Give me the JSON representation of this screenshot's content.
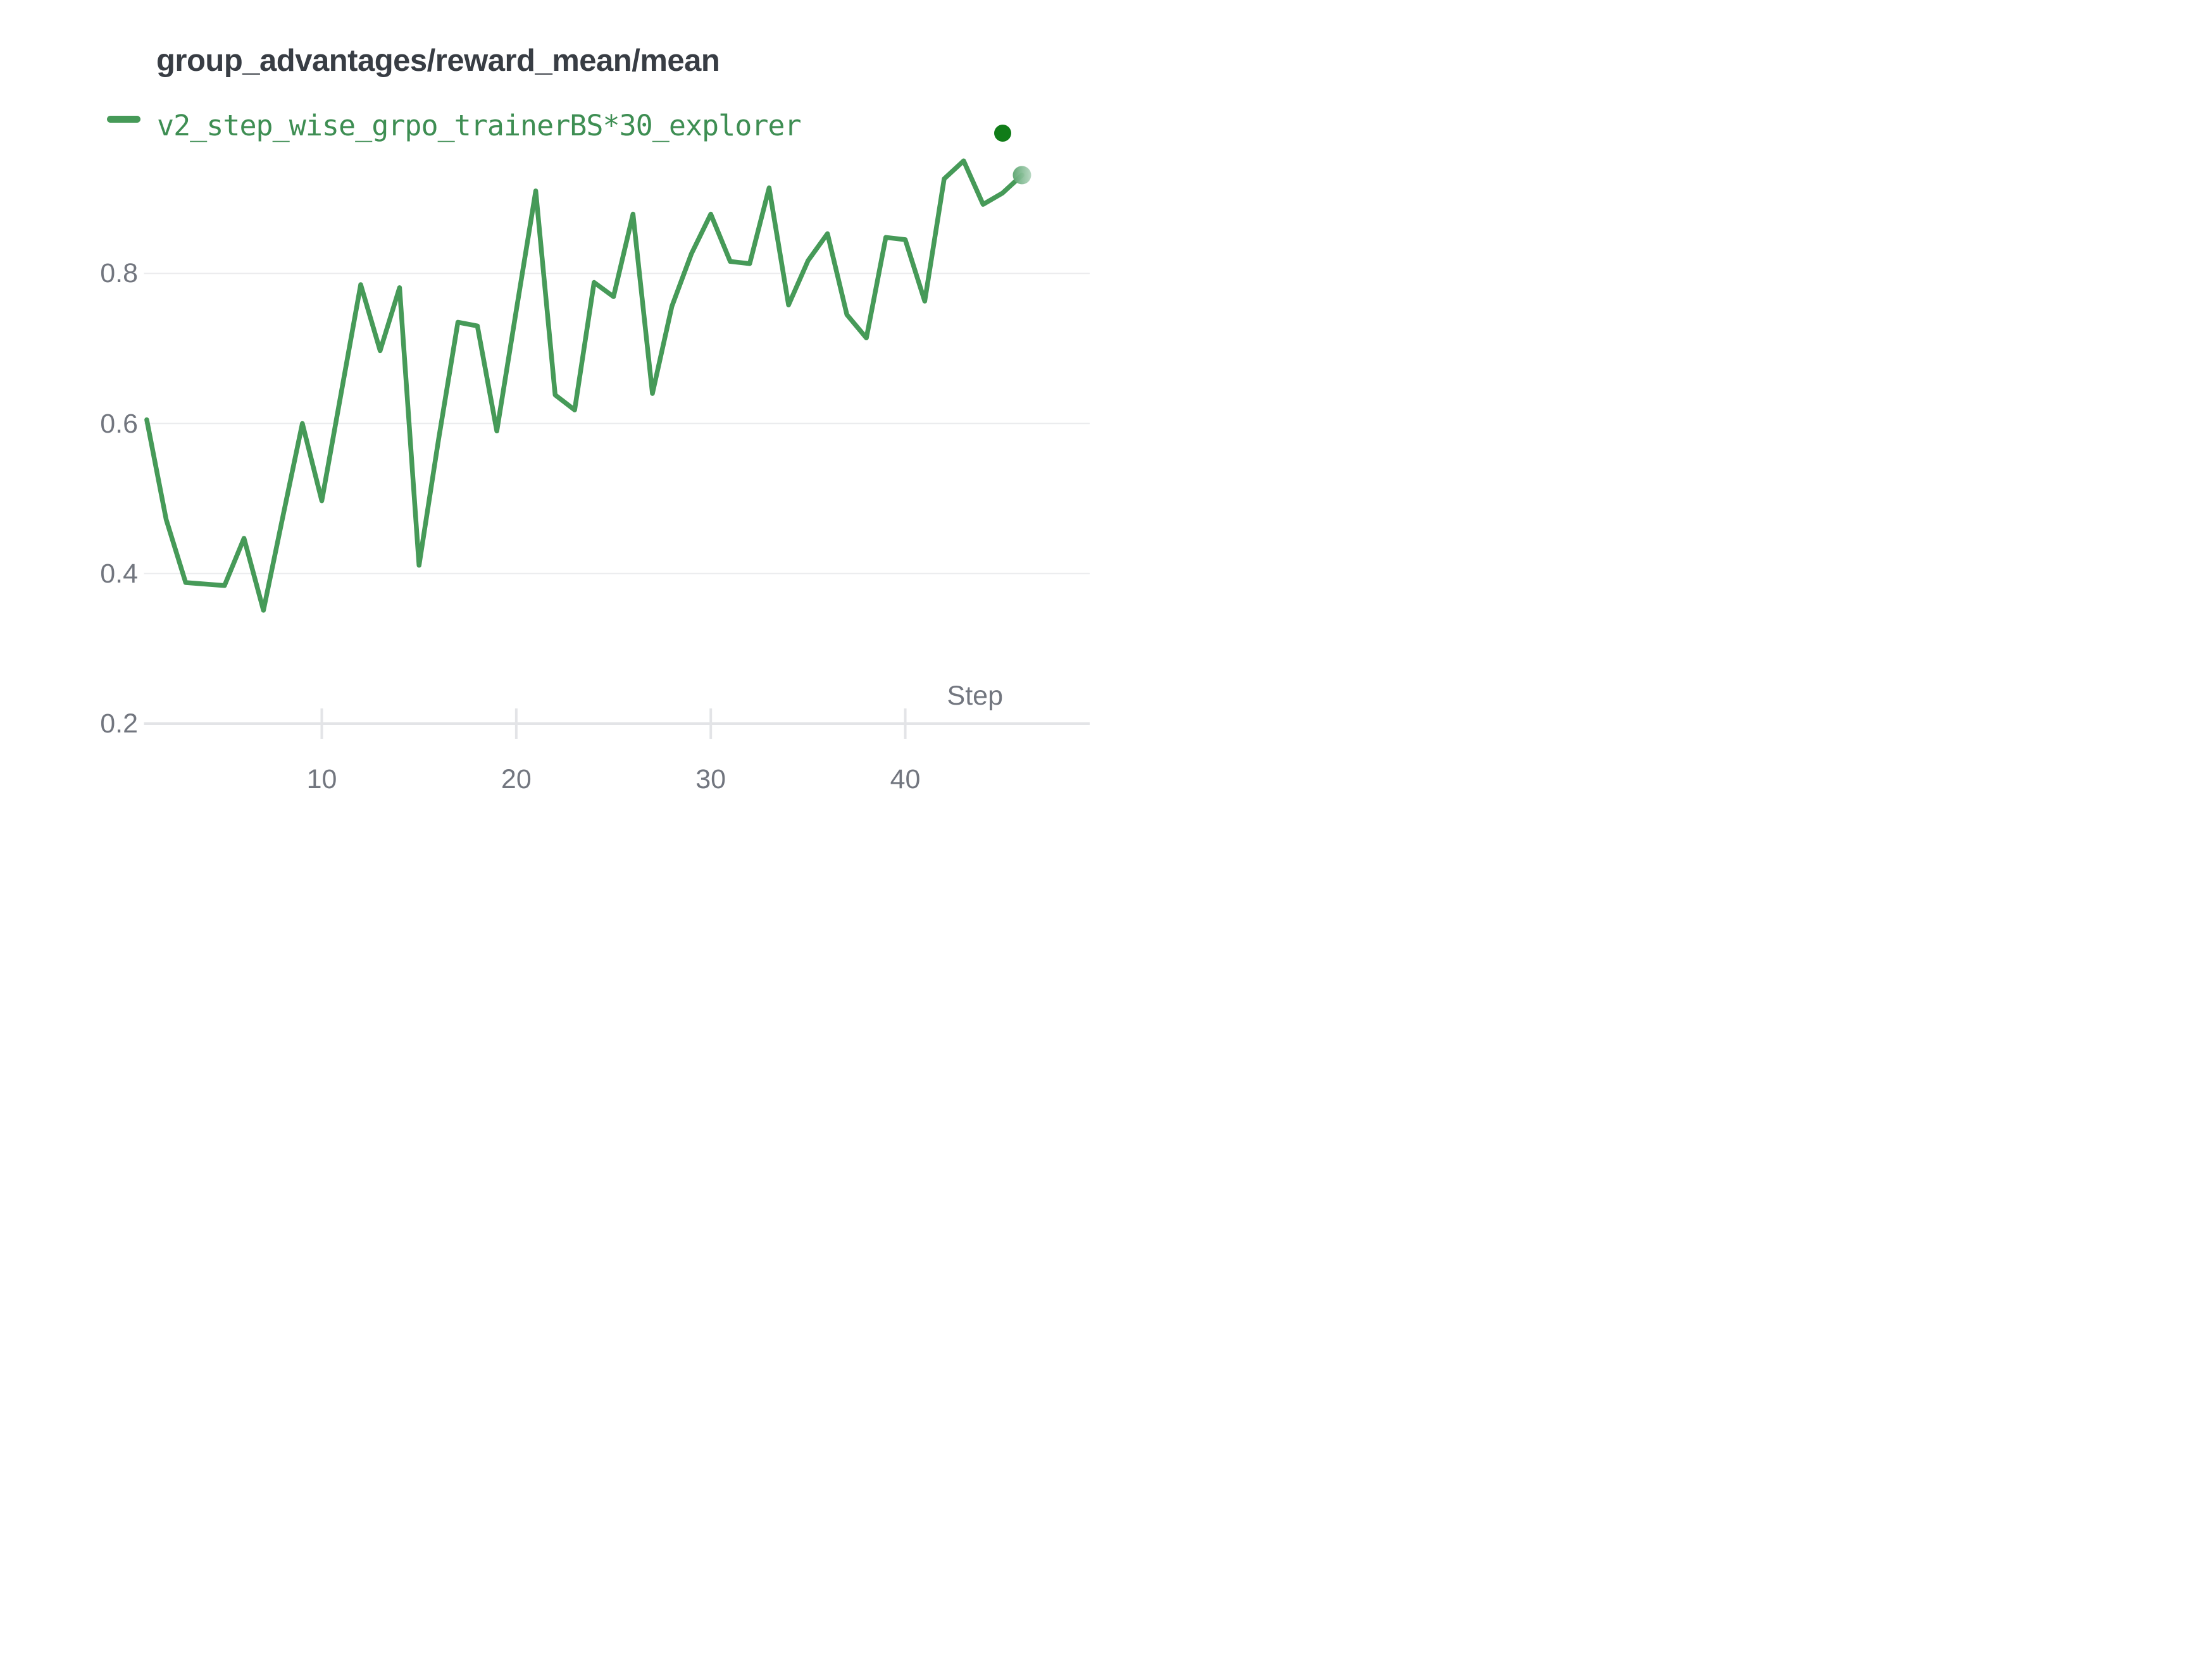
{
  "header": {
    "title": "group_advantages/reward_mean/mean"
  },
  "legend": {
    "series_label": "v2_step_wise_grpo_trainerBS*30_explorer",
    "swatch_color": "#469a58",
    "state_dot_color": "#107c18"
  },
  "axes": {
    "x_label": "Step",
    "x_tick_labels": [
      "10",
      "20",
      "30",
      "40"
    ],
    "y_tick_labels": [
      "0.8",
      "0.6",
      "0.4",
      "0.2"
    ]
  },
  "colors": {
    "line": "#469a58",
    "grid": "#ebecee",
    "axis_line": "#e3e4e7",
    "tick_text": "#72767f",
    "title_text": "#383d44",
    "legend_text": "#3e8e53",
    "end_marker_inner": "#5ba56f",
    "end_marker_outer": "#b4d6bf"
  },
  "chart_data": {
    "type": "line",
    "title": "group_advantages/reward_mean/mean",
    "xlabel": "Step",
    "ylabel": "",
    "legend_position": "top-left",
    "grid": "horizontal-only",
    "x_ticks": [
      10,
      20,
      30,
      40
    ],
    "y_ticks": [
      0.8,
      0.6,
      0.4,
      0.2
    ],
    "ylim_visible": [
      0.2,
      0.97
    ],
    "xlim_visible": [
      1,
      46
    ],
    "end_marker": true,
    "series": [
      {
        "name": "v2_step_wise_grpo_trainerBS*30_explorer",
        "color": "#469a58",
        "x": [
          1,
          2,
          3,
          4,
          5,
          6,
          7,
          8,
          9,
          10,
          11,
          12,
          13,
          14,
          15,
          16,
          17,
          18,
          19,
          20,
          21,
          22,
          23,
          24,
          25,
          26,
          27,
          28,
          29,
          30,
          31,
          32,
          33,
          34,
          35,
          36,
          37,
          38,
          39,
          40,
          41,
          42,
          43,
          44,
          45,
          46
        ],
        "y": [
          0.605,
          0.472,
          0.388,
          0.386,
          0.384,
          0.447,
          0.351,
          0.476,
          0.6,
          0.497,
          0.641,
          0.785,
          0.697,
          0.781,
          0.411,
          0.578,
          0.735,
          0.73,
          0.59,
          0.751,
          0.91,
          0.638,
          0.618,
          0.788,
          0.769,
          0.879,
          0.64,
          0.756,
          0.826,
          0.879,
          0.816,
          0.813,
          0.914,
          0.758,
          0.817,
          0.853,
          0.745,
          0.714,
          0.848,
          0.845,
          0.763,
          0.926,
          0.95,
          0.892,
          0.907,
          0.931
        ]
      }
    ]
  }
}
